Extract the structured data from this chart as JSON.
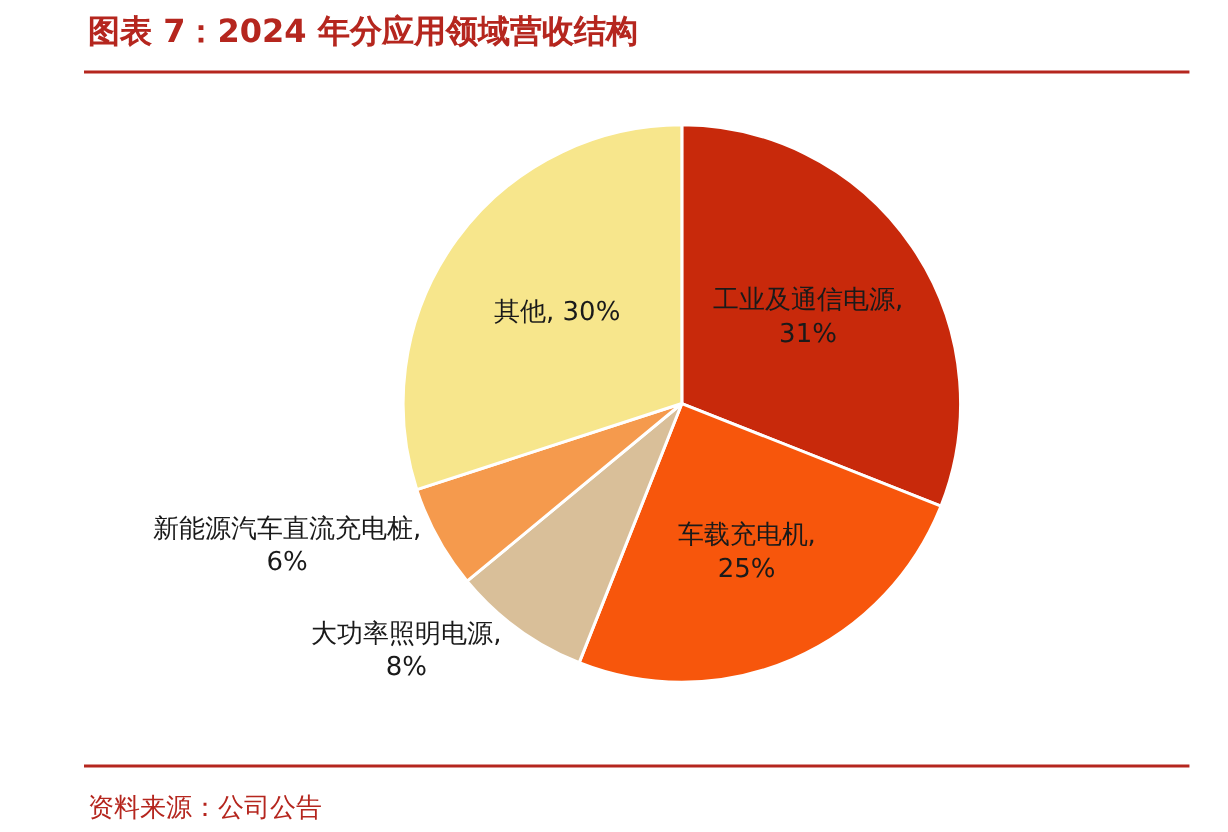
{
  "chart_data": {
    "type": "pie",
    "title": "图表 7：2024 年分应用领域营收结构",
    "categories": [
      "工业及通信电源",
      "车载充电机",
      "大功率照明电源",
      "新能源汽车直流充电桩",
      "其他"
    ],
    "values": [
      31,
      25,
      8,
      6,
      30
    ],
    "colors": [
      "#c8290b",
      "#f7560c",
      "#d9bf99",
      "#f59a4d",
      "#f7e68c"
    ],
    "value_labels": [
      ",\n31%",
      ",\n25%",
      ",\n8%",
      ",\n6%",
      ", 30%"
    ],
    "annotations": [
      "资料来源：公司公告"
    ]
  }
}
